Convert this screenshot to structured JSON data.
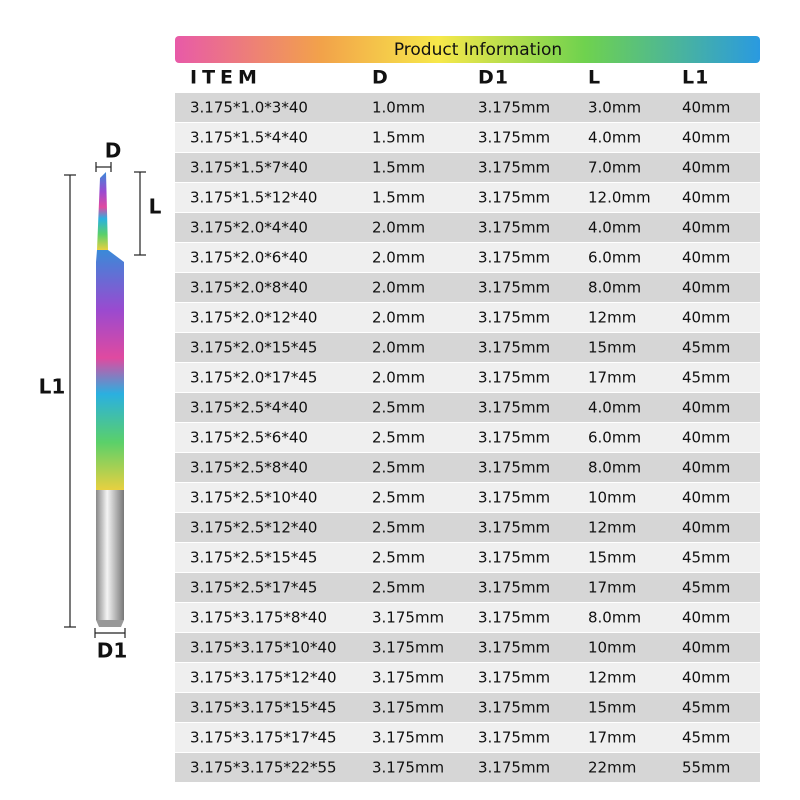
{
  "diagram_labels": {
    "d": "D",
    "l": "L",
    "l1": "L1",
    "d1": "D1"
  },
  "table": {
    "title": "Product Information",
    "columns": [
      "ITEM",
      "D",
      "D1",
      "L",
      "L1"
    ],
    "rows": [
      [
        "3.175*1.0*3*40",
        "1.0mm",
        "3.175mm",
        "3.0mm",
        "40mm"
      ],
      [
        "3.175*1.5*4*40",
        "1.5mm",
        "3.175mm",
        "4.0mm",
        "40mm"
      ],
      [
        "3.175*1.5*7*40",
        "1.5mm",
        "3.175mm",
        "7.0mm",
        "40mm"
      ],
      [
        "3.175*1.5*12*40",
        "1.5mm",
        "3.175mm",
        "12.0mm",
        "40mm"
      ],
      [
        "3.175*2.0*4*40",
        "2.0mm",
        "3.175mm",
        "4.0mm",
        "40mm"
      ],
      [
        "3.175*2.0*6*40",
        "2.0mm",
        "3.175mm",
        "6.0mm",
        "40mm"
      ],
      [
        "3.175*2.0*8*40",
        "2.0mm",
        "3.175mm",
        "8.0mm",
        "40mm"
      ],
      [
        "3.175*2.0*12*40",
        "2.0mm",
        "3.175mm",
        "12mm",
        "40mm"
      ],
      [
        "3.175*2.0*15*45",
        "2.0mm",
        "3.175mm",
        "15mm",
        "45mm"
      ],
      [
        "3.175*2.0*17*45",
        "2.0mm",
        "3.175mm",
        "17mm",
        "45mm"
      ],
      [
        "3.175*2.5*4*40",
        "2.5mm",
        "3.175mm",
        "4.0mm",
        "40mm"
      ],
      [
        "3.175*2.5*6*40",
        "2.5mm",
        "3.175mm",
        "6.0mm",
        "40mm"
      ],
      [
        "3.175*2.5*8*40",
        "2.5mm",
        "3.175mm",
        "8.0mm",
        "40mm"
      ],
      [
        "3.175*2.5*10*40",
        "2.5mm",
        "3.175mm",
        "10mm",
        "40mm"
      ],
      [
        "3.175*2.5*12*40",
        "2.5mm",
        "3.175mm",
        "12mm",
        "40mm"
      ],
      [
        "3.175*2.5*15*45",
        "2.5mm",
        "3.175mm",
        "15mm",
        "45mm"
      ],
      [
        "3.175*2.5*17*45",
        "2.5mm",
        "3.175mm",
        "17mm",
        "45mm"
      ],
      [
        "3.175*3.175*8*40",
        "3.175mm",
        "3.175mm",
        "8.0mm",
        "40mm"
      ],
      [
        "3.175*3.175*10*40",
        "3.175mm",
        "3.175mm",
        "10mm",
        "40mm"
      ],
      [
        "3.175*3.175*12*40",
        "3.175mm",
        "3.175mm",
        "12mm",
        "40mm"
      ],
      [
        "3.175*3.175*15*45",
        "3.175mm",
        "3.175mm",
        "15mm",
        "45mm"
      ],
      [
        "3.175*3.175*17*45",
        "3.175mm",
        "3.175mm",
        "17mm",
        "45mm"
      ],
      [
        "3.175*3.175*22*55",
        "3.175mm",
        "3.175mm",
        "22mm",
        "55mm"
      ]
    ]
  }
}
